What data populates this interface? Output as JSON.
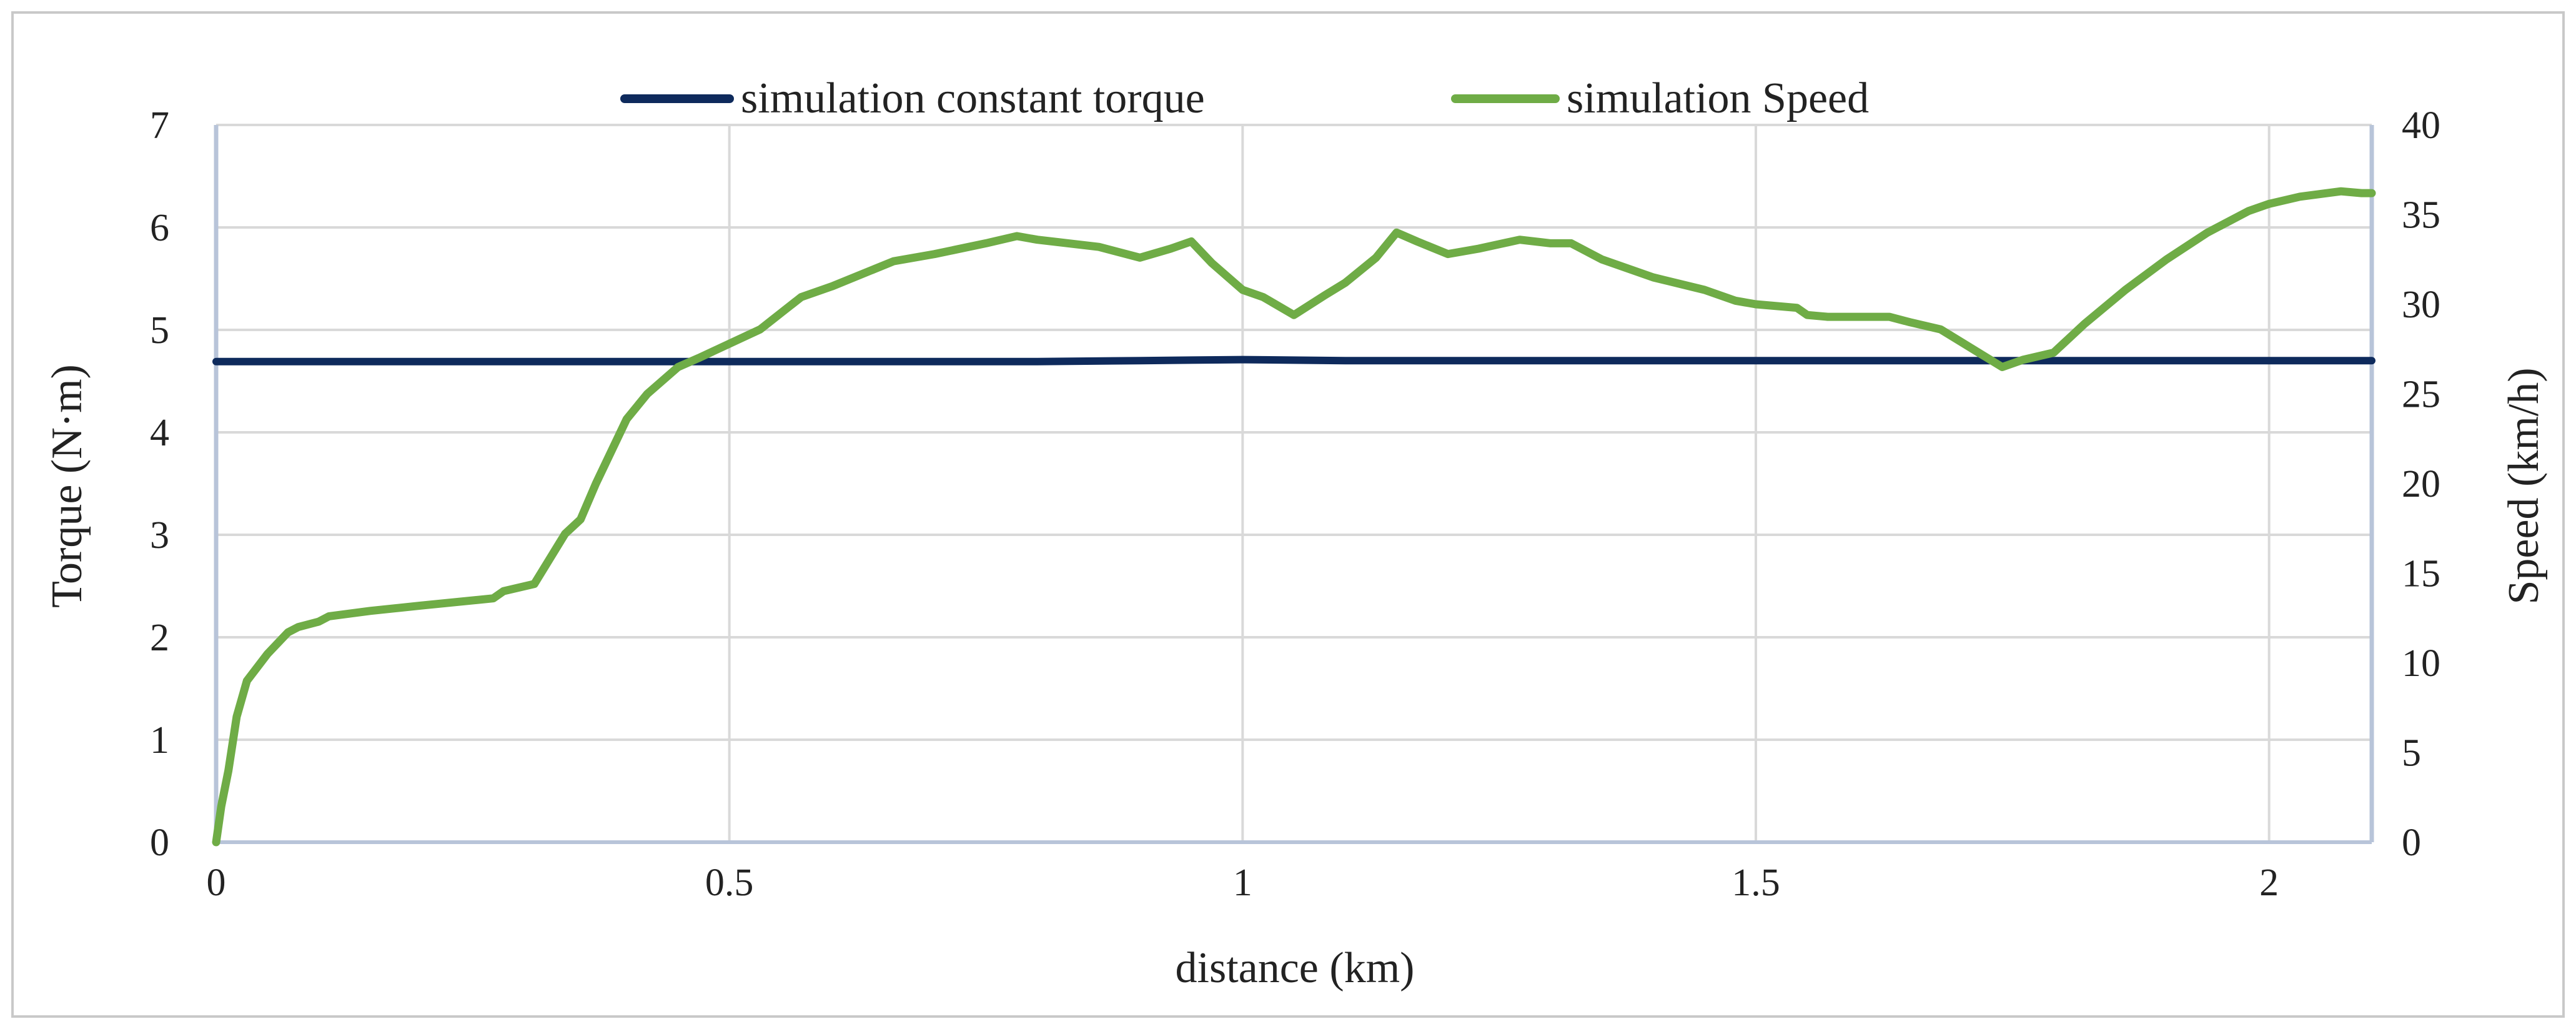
{
  "chart_data": {
    "type": "line",
    "xlabel": "distance (km)",
    "ylabel_left": "Torque (N·m)",
    "ylabel_right": "Speed (km/h)",
    "xlim": [
      0,
      2.1
    ],
    "ylim_left": [
      0,
      7
    ],
    "ylim_right": [
      0,
      40
    ],
    "x_ticks": [
      0,
      0.5,
      1,
      1.5,
      2
    ],
    "x_tick_labels": [
      "0",
      "0.5",
      "1",
      "1.5",
      "2"
    ],
    "y_left_ticks": [
      0,
      1,
      2,
      3,
      4,
      5,
      6,
      7
    ],
    "y_left_tick_labels": [
      "0",
      "1",
      "2",
      "3",
      "4",
      "5",
      "6",
      "7"
    ],
    "y_right_ticks": [
      0,
      5,
      10,
      15,
      20,
      25,
      30,
      35,
      40
    ],
    "y_right_tick_labels": [
      "0",
      "5",
      "10",
      "15",
      "20",
      "25",
      "30",
      "35",
      "40"
    ],
    "grid": "vertical",
    "legend_position": "top",
    "series": [
      {
        "name": "simulation constant torque",
        "axis": "left",
        "color": "#0e2a5c",
        "x": [
          0,
          0.1,
          0.2,
          0.3,
          0.4,
          0.5,
          0.6,
          0.7,
          0.8,
          0.9,
          1.0,
          1.1,
          1.2,
          1.3,
          1.4,
          1.5,
          1.6,
          1.7,
          1.8,
          1.9,
          2.0,
          2.1
        ],
        "y": [
          4.69,
          4.69,
          4.69,
          4.69,
          4.69,
          4.69,
          4.69,
          4.69,
          4.69,
          4.7,
          4.71,
          4.7,
          4.7,
          4.7,
          4.7,
          4.7,
          4.7,
          4.7,
          4.7,
          4.7,
          4.7,
          4.7
        ]
      },
      {
        "name": "simulation Speed",
        "axis": "right",
        "color": "#6fac46",
        "x": [
          0,
          0.005,
          0.012,
          0.02,
          0.03,
          0.05,
          0.07,
          0.08,
          0.1,
          0.11,
          0.15,
          0.2,
          0.27,
          0.28,
          0.31,
          0.34,
          0.355,
          0.37,
          0.4,
          0.42,
          0.45,
          0.47,
          0.5,
          0.53,
          0.55,
          0.57,
          0.6,
          0.66,
          0.7,
          0.75,
          0.78,
          0.8,
          0.83,
          0.86,
          0.9,
          0.93,
          0.95,
          0.97,
          1.0,
          1.02,
          1.05,
          1.08,
          1.1,
          1.13,
          1.15,
          1.17,
          1.2,
          1.23,
          1.27,
          1.3,
          1.32,
          1.35,
          1.4,
          1.45,
          1.48,
          1.5,
          1.54,
          1.55,
          1.57,
          1.6,
          1.63,
          1.65,
          1.68,
          1.7,
          1.72,
          1.74,
          1.76,
          1.79,
          1.82,
          1.86,
          1.9,
          1.94,
          1.98,
          2.0,
          2.03,
          2.07,
          2.09,
          2.1
        ],
        "y": [
          0,
          2,
          4,
          7,
          9,
          10.5,
          11.7,
          12,
          12.3,
          12.6,
          12.9,
          13.2,
          13.6,
          14,
          14.4,
          17.2,
          18,
          20,
          23.6,
          25,
          26.5,
          27,
          27.8,
          28.6,
          29.5,
          30.4,
          31,
          32.4,
          32.8,
          33.4,
          33.8,
          33.6,
          33.4,
          33.2,
          32.6,
          33.1,
          33.5,
          32.3,
          30.8,
          30.4,
          29.4,
          30.5,
          31.2,
          32.6,
          34,
          33.5,
          32.8,
          33.1,
          33.6,
          33.4,
          33.4,
          32.5,
          31.5,
          30.8,
          30.2,
          30.0,
          29.8,
          29.4,
          29.3,
          29.3,
          29.3,
          29.0,
          28.6,
          27.9,
          27.2,
          26.5,
          26.9,
          27.3,
          28.9,
          30.8,
          32.5,
          34.0,
          35.2,
          35.6,
          36.0,
          36.3,
          36.2,
          36.2
        ]
      }
    ]
  }
}
